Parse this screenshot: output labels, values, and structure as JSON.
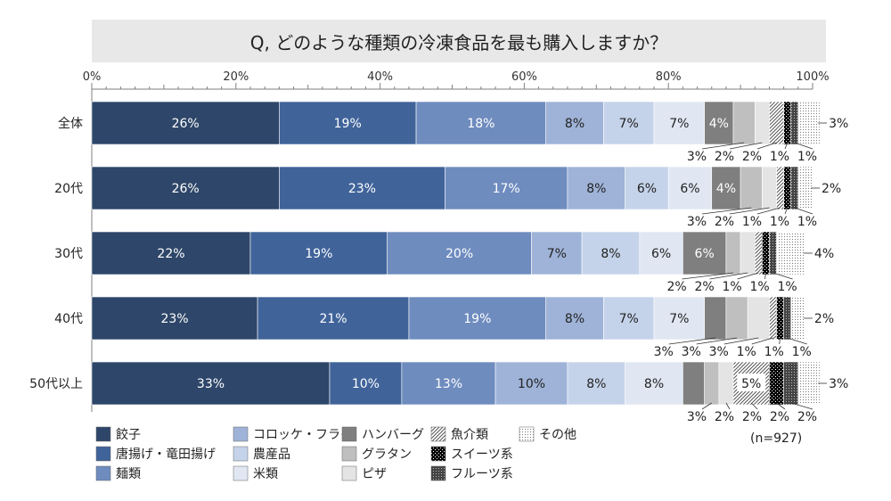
{
  "chart_data": {
    "type": "bar",
    "stacked": true,
    "orientation": "horizontal",
    "title": "Q, どのような種類の冷凍食品を最も購入しますか？",
    "note": "(n=927)",
    "xlim": [
      0,
      100
    ],
    "x_ticks": [
      "0%",
      "20%",
      "40%",
      "60%",
      "80%",
      "100%"
    ],
    "categories": [
      "全体",
      "20代",
      "30代",
      "40代",
      "50代以上"
    ],
    "series": [
      {
        "name": "餃子",
        "values": [
          26,
          26,
          22,
          23,
          33
        ],
        "color": "#2e4669",
        "pattern": "solid"
      },
      {
        "name": "唐揚げ・竜田揚げ",
        "values": [
          19,
          23,
          19,
          21,
          10
        ],
        "color": "#40639a",
        "pattern": "solid"
      },
      {
        "name": "麺類",
        "values": [
          18,
          17,
          20,
          19,
          13
        ],
        "color": "#6f8cbf",
        "pattern": "solid"
      },
      {
        "name": "コロッケ・フライ",
        "values": [
          8,
          8,
          7,
          8,
          10
        ],
        "color": "#9fb3d8",
        "pattern": "solid"
      },
      {
        "name": "農産品",
        "values": [
          7,
          6,
          8,
          7,
          8
        ],
        "color": "#c5d3ea",
        "pattern": "solid"
      },
      {
        "name": "米類",
        "values": [
          7,
          6,
          6,
          7,
          8
        ],
        "color": "#e0e7f3",
        "pattern": "solid"
      },
      {
        "name": "ハンバーグ",
        "values": [
          4,
          4,
          6,
          3,
          3
        ],
        "color": "#7f7f7f",
        "pattern": "solid"
      },
      {
        "name": "グラタン",
        "values": [
          3,
          3,
          2,
          3,
          2
        ],
        "color": "#bfbfbf",
        "pattern": "solid"
      },
      {
        "name": "ピザ",
        "values": [
          2,
          2,
          2,
          3,
          2
        ],
        "color": "#e4e4e4",
        "pattern": "solid"
      },
      {
        "name": "魚介類",
        "values": [
          2,
          1,
          1,
          1,
          5
        ],
        "color": "#999999",
        "pattern": "diagonal"
      },
      {
        "name": "スイーツ系",
        "values": [
          1,
          1,
          1,
          1,
          2
        ],
        "color": "#000000",
        "pattern": "checker"
      },
      {
        "name": "フルーツ系",
        "values": [
          1,
          1,
          1,
          1,
          2
        ],
        "color": "#555555",
        "pattern": "crosshatch"
      },
      {
        "name": "その他",
        "values": [
          3,
          2,
          4,
          2,
          3
        ],
        "color": "#888888",
        "pattern": "dots"
      }
    ],
    "inside_labels": [
      [
        "26%",
        "19%",
        "18%",
        "8%",
        "7%",
        "7%",
        "4%"
      ],
      [
        "26%",
        "23%",
        "17%",
        "8%",
        "6%",
        "6%",
        "4%"
      ],
      [
        "22%",
        "19%",
        "20%",
        "7%",
        "8%",
        "6%",
        "6%"
      ],
      [
        "23%",
        "21%",
        "19%",
        "8%",
        "7%",
        "7%"
      ],
      [
        "33%",
        "10%",
        "13%",
        "10%",
        "8%",
        "8%"
      ]
    ],
    "callout_labels": [
      [
        "3%",
        "2%",
        "2%",
        "1%",
        "1%"
      ],
      [
        "3%",
        "2%",
        "1%",
        "1%",
        "1%"
      ],
      [
        "2%",
        "2%",
        "1%",
        "1%",
        "1%"
      ],
      [
        "3%",
        "3%",
        "3%",
        "1%",
        "1%",
        "1%"
      ],
      [
        "3%",
        "2%",
        "2%",
        "2%",
        "2%"
      ]
    ],
    "boxed_labels": [
      "",
      "",
      "",
      "",
      "5%"
    ],
    "right_labels": [
      "3%",
      "2%",
      "4%",
      "2%",
      "3%"
    ],
    "legend_position": "bottom-left",
    "grid": false
  }
}
